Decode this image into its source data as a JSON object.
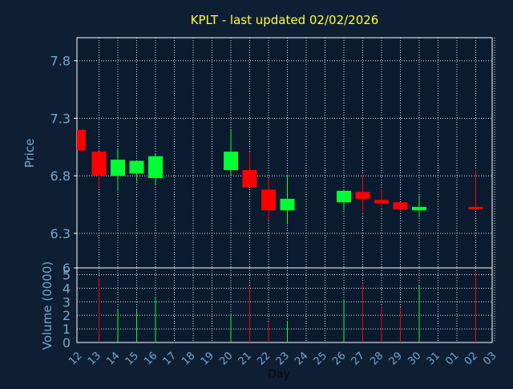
{
  "chart_data": {
    "type": "candlestick",
    "title": "KPLT - last updated 02/02/2026",
    "xlabel": "Day",
    "price_panel": {
      "ylabel": "Price",
      "ylim": [
        6.0,
        8.0
      ],
      "yticks": [
        "7.8",
        "7.3",
        "6.8",
        "6.3",
        "6"
      ],
      "grid": true
    },
    "volume_panel": {
      "ylabel": "Volume (0000)",
      "ylim": [
        0,
        5.5
      ],
      "yticks": [
        "0",
        "1",
        "2",
        "3",
        "4",
        "5"
      ],
      "grid": true
    },
    "x_ticks": [
      "12",
      "13",
      "14",
      "15",
      "16",
      "17",
      "18",
      "19",
      "20",
      "21",
      "22",
      "23",
      "24",
      "25",
      "26",
      "27",
      "28",
      "29",
      "30",
      "31",
      "01",
      "02",
      "03"
    ],
    "colors": {
      "up": "#00ff33",
      "down": "#ff0000",
      "background": "#0f1f33",
      "panel": "#0b1b2f"
    },
    "candles": [
      {
        "day": "12",
        "open": 7.2,
        "close": 7.02,
        "high": 7.2,
        "low": 7.02
      },
      {
        "day": "13",
        "open": 7.01,
        "close": 6.8,
        "high": 7.01,
        "low": 6.7
      },
      {
        "day": "14",
        "open": 6.8,
        "close": 6.94,
        "high": 7.03,
        "low": 6.67
      },
      {
        "day": "15",
        "open": 6.82,
        "close": 6.93,
        "high": 6.93,
        "low": 6.75
      },
      {
        "day": "16",
        "open": 6.78,
        "close": 6.97,
        "high": 6.99,
        "low": 6.72
      },
      {
        "day": "20",
        "open": 6.85,
        "close": 7.01,
        "high": 7.2,
        "low": 6.8
      },
      {
        "day": "21",
        "open": 6.85,
        "close": 6.7,
        "high": 7.01,
        "low": 6.7
      },
      {
        "day": "22",
        "open": 6.68,
        "close": 6.5,
        "high": 6.78,
        "low": 6.41
      },
      {
        "day": "23",
        "open": 6.5,
        "close": 6.6,
        "high": 6.81,
        "low": 6.38
      },
      {
        "day": "26",
        "open": 6.57,
        "close": 6.67,
        "high": 6.68,
        "low": 6.5
      },
      {
        "day": "27",
        "open": 6.66,
        "close": 6.6,
        "high": 6.81,
        "low": 6.48
      },
      {
        "day": "28",
        "open": 6.59,
        "close": 6.56,
        "high": 6.68,
        "low": 6.53
      },
      {
        "day": "29",
        "open": 6.57,
        "close": 6.51,
        "high": 6.57,
        "low": 6.49
      },
      {
        "day": "30",
        "open": 6.5,
        "close": 6.53,
        "high": 6.63,
        "low": 6.44
      },
      {
        "day": "02",
        "open": 6.53,
        "close": 6.51,
        "high": 6.85,
        "low": 6.51
      }
    ],
    "volume": [
      {
        "day": "13",
        "value": 4.8,
        "direction": "down"
      },
      {
        "day": "14",
        "value": 2.5,
        "direction": "up"
      },
      {
        "day": "15",
        "value": 2.4,
        "direction": "up"
      },
      {
        "day": "16",
        "value": 3.3,
        "direction": "up"
      },
      {
        "day": "20",
        "value": 2.0,
        "direction": "up"
      },
      {
        "day": "21",
        "value": 4.2,
        "direction": "down"
      },
      {
        "day": "22",
        "value": 1.5,
        "direction": "down"
      },
      {
        "day": "23",
        "value": 1.6,
        "direction": "up"
      },
      {
        "day": "26",
        "value": 3.2,
        "direction": "up"
      },
      {
        "day": "27",
        "value": 4.4,
        "direction": "down"
      },
      {
        "day": "28",
        "value": 2.7,
        "direction": "down"
      },
      {
        "day": "29",
        "value": 2.6,
        "direction": "down"
      },
      {
        "day": "30",
        "value": 4.2,
        "direction": "up"
      },
      {
        "day": "02",
        "value": 5.2,
        "direction": "down"
      }
    ]
  }
}
